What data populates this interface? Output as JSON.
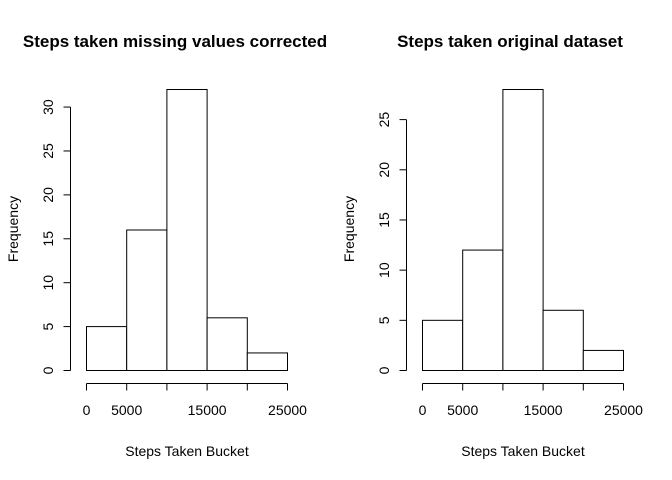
{
  "chart_data": [
    {
      "type": "bar",
      "title": "Steps taken missing values corrected",
      "xlabel": "Steps Taken Bucket",
      "ylabel": "Frequency",
      "bins": [
        [
          0,
          5000
        ],
        [
          5000,
          10000
        ],
        [
          10000,
          15000
        ],
        [
          15000,
          20000
        ],
        [
          20000,
          25000
        ]
      ],
      "values": [
        5,
        16,
        32,
        6,
        2
      ],
      "xlim": [
        0,
        25000
      ],
      "x_ticks": [
        0,
        5000,
        10000,
        15000,
        20000,
        25000
      ],
      "x_tick_labels": [
        "0",
        "5000",
        "",
        "15000",
        "",
        "25000"
      ],
      "ylim": [
        0,
        32
      ],
      "y_ticks": [
        0,
        5,
        10,
        15,
        20,
        25,
        30
      ],
      "y_tick_labels": [
        "0",
        "5",
        "10",
        "15",
        "20",
        "25",
        "30"
      ]
    },
    {
      "type": "bar",
      "title": "Steps taken original dataset",
      "xlabel": "Steps Taken Bucket",
      "ylabel": "Frequency",
      "bins": [
        [
          0,
          5000
        ],
        [
          5000,
          10000
        ],
        [
          10000,
          15000
        ],
        [
          15000,
          20000
        ],
        [
          20000,
          25000
        ]
      ],
      "values": [
        5,
        12,
        28,
        6,
        2
      ],
      "xlim": [
        0,
        25000
      ],
      "x_ticks": [
        0,
        5000,
        10000,
        15000,
        20000,
        25000
      ],
      "x_tick_labels": [
        "0",
        "5000",
        "",
        "15000",
        "",
        "25000"
      ],
      "ylim": [
        0,
        28
      ],
      "y_ticks": [
        0,
        5,
        10,
        15,
        20,
        25
      ],
      "y_tick_labels": [
        "0",
        "5",
        "10",
        "15",
        "20",
        "25"
      ]
    }
  ]
}
